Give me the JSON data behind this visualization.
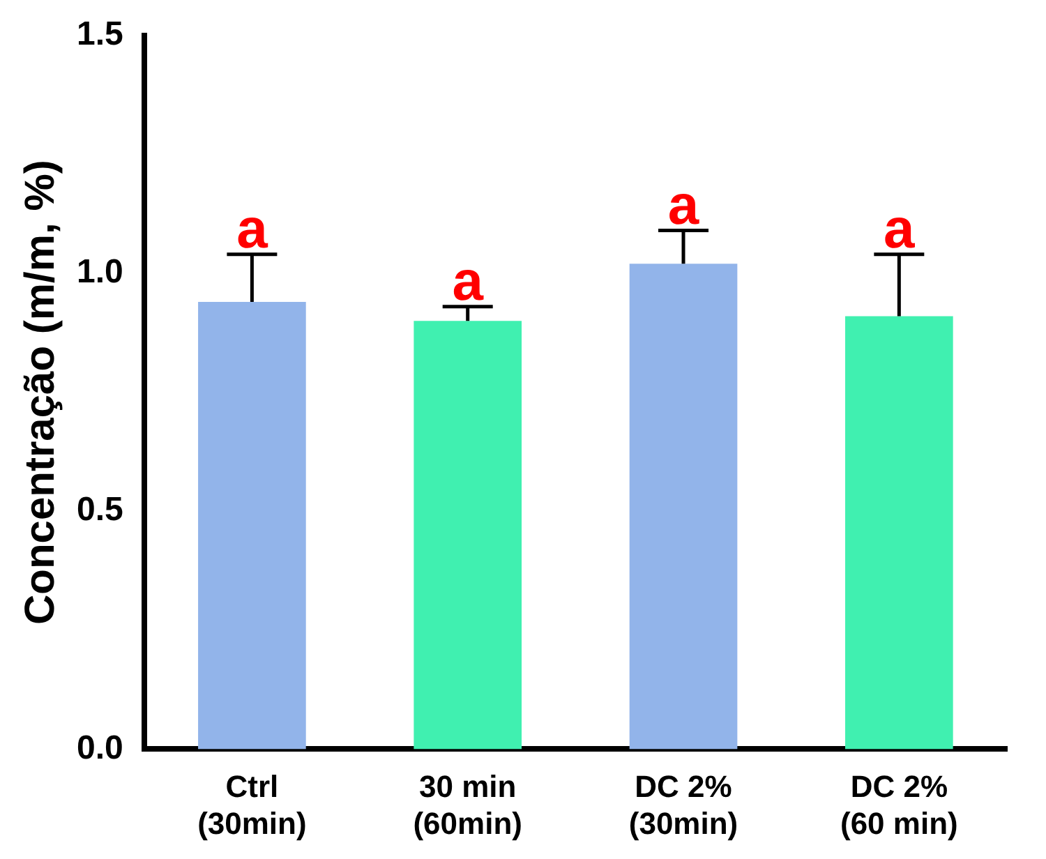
{
  "chart_data": {
    "type": "bar",
    "ylabel": "Concentração (m/m, %)",
    "categories": [
      "Ctrl\n(30min)",
      "30 min\n(60min)",
      "DC 2%\n(30min)",
      "DC 2%\n(60 min)"
    ],
    "values": [
      0.94,
      0.9,
      1.02,
      0.91
    ],
    "colors": [
      "#92b4ea",
      "#40f0b0",
      "#92b4ea",
      "#40f0b0"
    ],
    "errors": [
      [
        0.94,
        1.04
      ],
      [
        0.9,
        0.93
      ],
      [
        1.02,
        1.09
      ],
      [
        0.91,
        1.04
      ]
    ],
    "ylim": [
      0,
      1.5
    ],
    "yticks": [
      {
        "value": 0,
        "label": "0.0"
      },
      {
        "value": 0.5,
        "label": "0.5"
      },
      {
        "value": 1,
        "label": "1.0"
      },
      {
        "value": 1.5,
        "label": "1.5"
      }
    ],
    "grid": false,
    "legend": false,
    "annotations": [
      {
        "text": "a",
        "x": "Ctrl\n(30min)",
        "y": 1.04
      },
      {
        "text": "a",
        "x": "30 min\n(60min)",
        "y": 0.93
      },
      {
        "text": "a",
        "x": "DC 2%\n(30min)",
        "y": 1.09
      },
      {
        "text": "a",
        "x": "DC 2%\n(60 min)",
        "y": 1.04
      }
    ]
  }
}
